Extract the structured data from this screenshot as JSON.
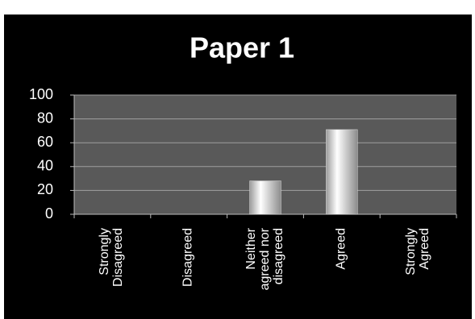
{
  "chart_data": {
    "type": "bar",
    "title": "Paper 1",
    "categories": [
      "Strongly Disagreed",
      "Disagreed",
      "Neither agreed nor disagreed",
      "Agreed",
      "Strongly Agreed"
    ],
    "values": [
      0,
      0,
      28,
      71,
      0
    ],
    "color": "#e0e0e0",
    "ylim": [
      0,
      100
    ],
    "yticks": [
      0,
      20,
      40,
      60,
      80,
      100
    ],
    "grid": true
  }
}
